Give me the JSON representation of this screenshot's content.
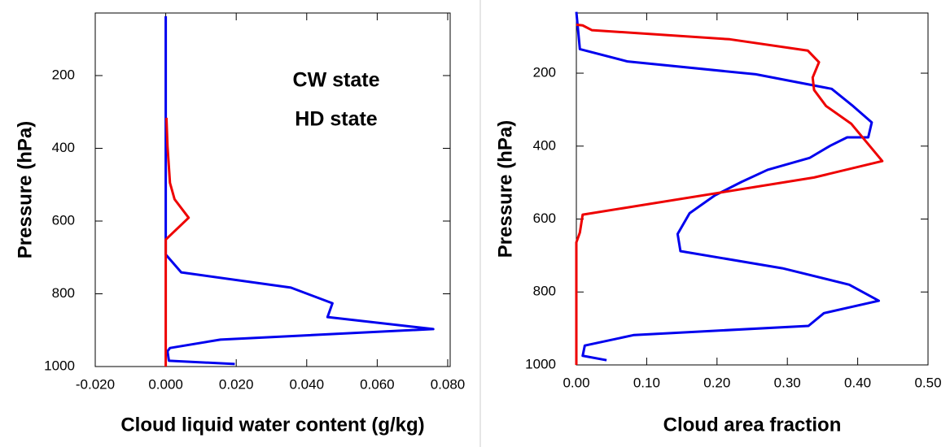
{
  "chart_data": [
    {
      "type": "line",
      "xlabel": "Cloud liquid water content (g/kg)",
      "ylabel": "Pressure (hPa)",
      "xlim": [
        -0.02,
        0.0807
      ],
      "ylim": [
        1000,
        28
      ],
      "xticks": [
        {
          "value": -0.02,
          "label": "-0.020"
        },
        {
          "value": 0,
          "label": "0.000"
        },
        {
          "value": 0.02,
          "label": "0.020"
        },
        {
          "value": 0.04,
          "label": "0.040"
        },
        {
          "value": 0.06,
          "label": "0.060"
        },
        {
          "value": 0.08,
          "label": "0.080"
        }
      ],
      "yticks": [
        200,
        400,
        600,
        800,
        1000
      ],
      "legend": "upper right",
      "series": [
        {
          "name": "CW state",
          "color": "#0000ee",
          "x": [
            0.0196,
            0.0009,
            0.0005,
            0.0012,
            0.0155,
            0.0759,
            0.0459,
            0.0473,
            0.0355,
            0.0044,
            0,
            0
          ],
          "y": [
            993,
            984,
            958,
            949,
            926,
            897,
            864,
            826,
            783,
            741,
            692,
            37
          ]
        },
        {
          "name": "HD state",
          "color": "#ee0000",
          "x": [
            0,
            0,
            0.0065,
            0.0025,
            0.0012,
            0.0005,
            0.0002
          ],
          "y": [
            1000,
            651,
            591,
            540,
            495,
            394,
            316
          ]
        }
      ]
    },
    {
      "type": "line",
      "xlabel": "Cloud area fraction",
      "ylabel": "Pressure (hPa)",
      "xlim": [
        0,
        0.5
      ],
      "ylim": [
        1000,
        35
      ],
      "xticks": [
        {
          "value": 0,
          "label": "0.00"
        },
        {
          "value": 0.1,
          "label": "0.10"
        },
        {
          "value": 0.2,
          "label": "0.20"
        },
        {
          "value": 0.3,
          "label": "0.30"
        },
        {
          "value": 0.4,
          "label": "0.40"
        },
        {
          "value": 0.5,
          "label": "0.50"
        }
      ],
      "yticks": [
        200,
        400,
        600,
        800,
        1000
      ],
      "series": [
        {
          "color": "#0000ee",
          "x": [
            0.043,
            0.009,
            0.012,
            0.082,
            0.33,
            0.352,
            0.43,
            0.388,
            0.293,
            0.148,
            0.144,
            0.161,
            0.197,
            0.235,
            0.272,
            0.332,
            0.361,
            0.385,
            0.415,
            0.42,
            0.392,
            0.363,
            0.255,
            0.073,
            0.005,
            0
          ],
          "y": [
            987,
            975,
            947,
            918,
            893,
            858,
            824,
            780,
            735,
            688,
            641,
            584,
            535,
            498,
            465,
            432,
            399,
            376,
            376,
            335,
            288,
            243,
            203,
            168,
            134,
            32
          ]
        },
        {
          "color": "#ee0000",
          "x": [
            0,
            0,
            0.005,
            0.009,
            0.338,
            0.435,
            0.391,
            0.355,
            0.338,
            0.336,
            0.345,
            0.329,
            0.218,
            0.022,
            0.009,
            0
          ],
          "y": [
            1000,
            664,
            637,
            588,
            486,
            441,
            339,
            290,
            246,
            212,
            170,
            138,
            107,
            82,
            69,
            67
          ]
        }
      ]
    }
  ]
}
